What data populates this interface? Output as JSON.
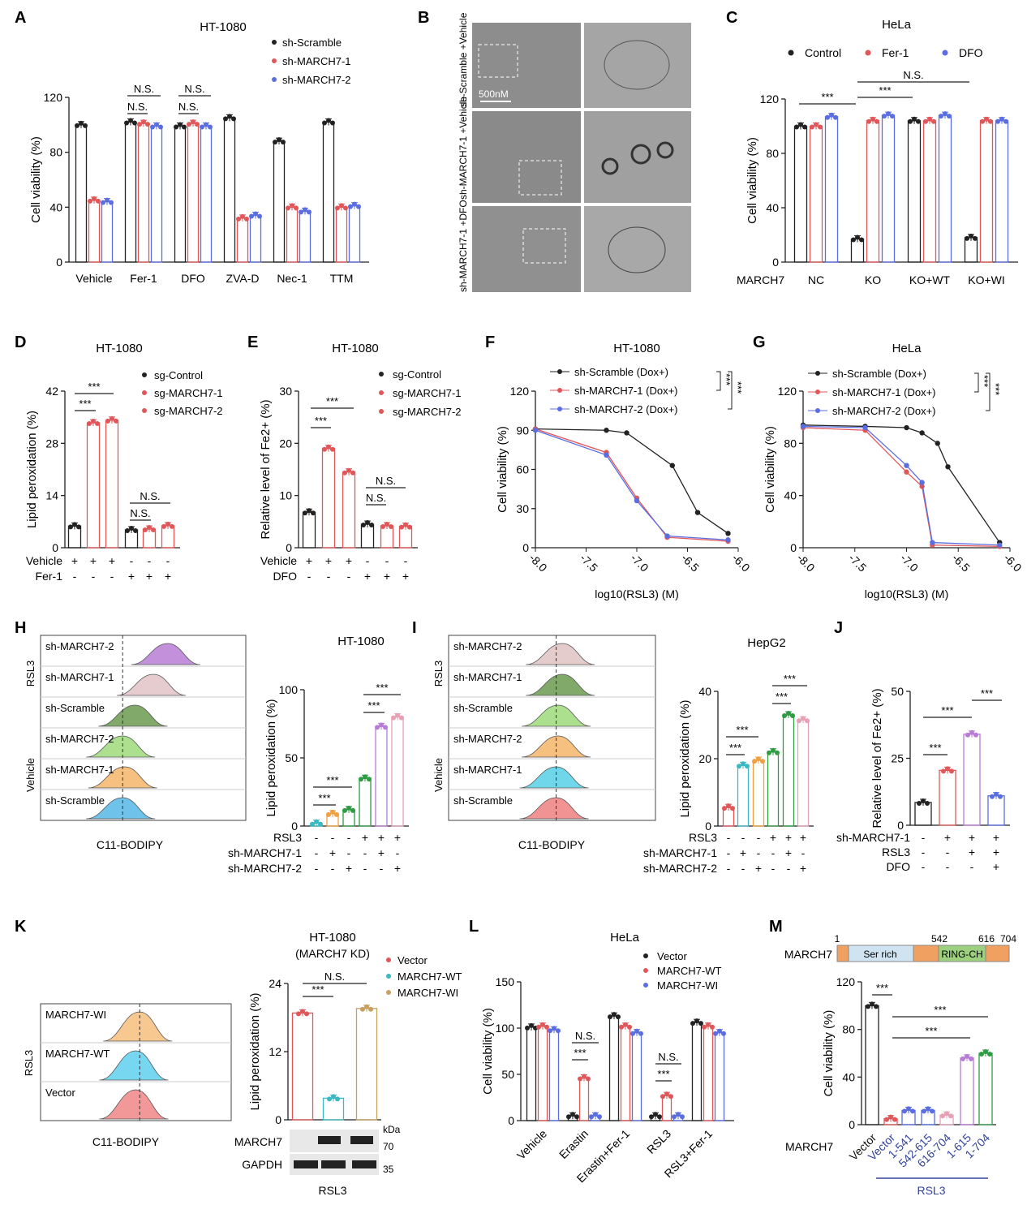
{
  "panel_letters": [
    "A",
    "B",
    "C",
    "D",
    "E",
    "F",
    "G",
    "H",
    "I",
    "J",
    "K",
    "L",
    "M"
  ],
  "colors": {
    "black": "#222222",
    "red": "#e15759",
    "blue": "#5b6ee1",
    "purple": "#b87cd6",
    "pink": "#e8a0b4",
    "green": "#2e9c42",
    "teal": "#3bb9c2",
    "tan": "#c8a060"
  },
  "chart_data": [
    {
      "id": "A",
      "type": "bar",
      "title": "HT-1080",
      "ylabel": "Cell viability (%)",
      "ylim": [
        0,
        120
      ],
      "yticks": [
        0,
        40,
        80,
        120
      ],
      "categories": [
        "Vehicle",
        "Fer-1",
        "DFO",
        "ZVA-D",
        "Nec-1",
        "TTM"
      ],
      "series": [
        {
          "name": "sh-Scramble",
          "values": [
            100,
            102,
            99,
            105,
            88,
            102
          ]
        },
        {
          "name": "sh-MARCH7-1",
          "values": [
            45,
            101,
            101,
            32,
            40,
            40
          ]
        },
        {
          "name": "sh-MARCH7-2",
          "values": [
            44,
            99,
            99,
            34,
            37,
            41
          ]
        }
      ],
      "annotations": [
        "N.S.",
        "N.S.",
        "N.S.",
        "N.S."
      ]
    },
    {
      "id": "B",
      "type": "image",
      "row_labels": [
        "sh-Scramble +Vehicle",
        "sh-MARCH7-1 +Vehicle",
        "sh-MARCH7-1 +DFO"
      ],
      "scale_bar": "500nM"
    },
    {
      "id": "C",
      "type": "bar",
      "title": "HeLa",
      "ylabel": "Cell viability (%)",
      "ylim": [
        0,
        120
      ],
      "yticks": [
        0,
        40,
        80,
        120
      ],
      "row_label": "MARCH7",
      "categories": [
        "NC",
        "KO",
        "KO+WT",
        "KO+WI"
      ],
      "series": [
        {
          "name": "Control",
          "values": [
            100,
            17,
            104,
            18
          ]
        },
        {
          "name": "Fer-1",
          "values": [
            100,
            104,
            104,
            104
          ]
        },
        {
          "name": "DFO",
          "values": [
            107,
            108,
            108,
            104
          ]
        }
      ],
      "annotations": [
        "***",
        "***",
        "N.S."
      ]
    },
    {
      "id": "D",
      "type": "bar",
      "title": "HT-1080",
      "ylabel": "Lipid peroxidation (%)",
      "ylim": [
        0,
        42
      ],
      "yticks": [
        0,
        14,
        28,
        42
      ],
      "categories": [
        "1",
        "2",
        "3",
        "4",
        "5",
        "6"
      ],
      "values": [
        5.8,
        33.5,
        34.2,
        4.8,
        5.0,
        5.9
      ],
      "row_labels": [
        {
          "label": "Vehicle",
          "signs": [
            "+",
            "+",
            "+",
            "-",
            "-",
            "-"
          ]
        },
        {
          "label": "Fer-1",
          "signs": [
            "-",
            "-",
            "-",
            "+",
            "+",
            "+"
          ]
        }
      ],
      "legend": [
        "sg-Control",
        "sg-MARCH7-1",
        "sg-MARCH7-2"
      ],
      "annotations": [
        "***",
        "***",
        "N.S.",
        "N.S."
      ]
    },
    {
      "id": "E",
      "type": "bar",
      "title": "HT-1080",
      "ylabel": "Relative level of Fe2+ (%)",
      "ylim": [
        0,
        30
      ],
      "yticks": [
        0,
        10,
        20,
        30
      ],
      "categories": [
        "1",
        "2",
        "3",
        "4",
        "5",
        "6"
      ],
      "values": [
        6.8,
        19.0,
        14.5,
        4.5,
        4.2,
        4.1
      ],
      "row_labels": [
        {
          "label": "Vehicle",
          "signs": [
            "+",
            "+",
            "+",
            "-",
            "-",
            "-"
          ]
        },
        {
          "label": "DFO",
          "signs": [
            "-",
            "-",
            "-",
            "+",
            "+",
            "+"
          ]
        }
      ],
      "legend": [
        "sg-Control",
        "sg-MARCH7-1",
        "sg-MARCH7-2"
      ],
      "annotations": [
        "***",
        "***",
        "N.S.",
        "N.S."
      ]
    },
    {
      "id": "F",
      "type": "line",
      "title": "HT-1080",
      "ylabel": "Cell viability (%)",
      "xlabel": "log10(RSL3)  (M)",
      "xlim": [
        -8.0,
        -6.0
      ],
      "ylim": [
        0,
        120
      ],
      "xticks": [
        "-8.0",
        "-7.5",
        "-7.0",
        "-6.5",
        "-6.0"
      ],
      "yticks": [
        0,
        30,
        60,
        90,
        120
      ],
      "series": [
        {
          "name": "sh-Scramble (Dox+)",
          "x": [
            -8.0,
            -7.3,
            -7.1,
            -6.65,
            -6.4,
            -6.1
          ],
          "y": [
            91,
            90,
            88,
            63,
            27,
            11
          ]
        },
        {
          "name": "sh-MARCH7-1 (Dox+)",
          "x": [
            -8.0,
            -7.3,
            -7.0,
            -6.7,
            -6.1
          ],
          "y": [
            91,
            73,
            38,
            8,
            5
          ]
        },
        {
          "name": "sh-MARCH7-2 (Dox+)",
          "x": [
            -8.0,
            -7.3,
            -7.0,
            -6.7,
            -6.1
          ],
          "y": [
            90,
            71,
            36,
            9,
            6
          ]
        }
      ],
      "annotations": [
        "***",
        "***"
      ]
    },
    {
      "id": "G",
      "type": "line",
      "title": "HeLa",
      "ylabel": "Cell viability (%)",
      "xlabel": "log10(RSL3)  (M)",
      "xlim": [
        -8.0,
        -6.0
      ],
      "ylim": [
        0,
        120
      ],
      "xticks": [
        "-8.0",
        "-7.5",
        "-7.0",
        "-6.5",
        "-6.0"
      ],
      "yticks": [
        0,
        40,
        80,
        120
      ],
      "series": [
        {
          "name": "sh-Scramble (Dox+)",
          "x": [
            -8.0,
            -7.4,
            -7.0,
            -6.85,
            -6.7,
            -6.6,
            -6.1
          ],
          "y": [
            94,
            93,
            92,
            88,
            80,
            62,
            4
          ]
        },
        {
          "name": "sh-MARCH7-1 (Dox+)",
          "x": [
            -8.0,
            -7.4,
            -7.0,
            -6.85,
            -6.75,
            -6.1
          ],
          "y": [
            92,
            90,
            58,
            47,
            2,
            1
          ]
        },
        {
          "name": "sh-MARCH7-2 (Dox+)",
          "x": [
            -8.0,
            -7.4,
            -7.0,
            -6.85,
            -6.75,
            -6.1
          ],
          "y": [
            93,
            92,
            63,
            50,
            4,
            2
          ]
        }
      ],
      "annotations": [
        "***",
        "***"
      ]
    },
    {
      "id": "H",
      "type": "bar",
      "title": "HT-1080",
      "ylabel": "Lipid peroxidation (%)",
      "ylim": [
        0,
        100
      ],
      "yticks": [
        0,
        50,
        100
      ],
      "categories": [
        "1",
        "2",
        "3",
        "4",
        "5",
        "6"
      ],
      "values": [
        2,
        9,
        12,
        35,
        73,
        80
      ],
      "row_labels": [
        {
          "label": "RSL3",
          "signs": [
            "-",
            "-",
            "-",
            "+",
            "+",
            "+"
          ]
        },
        {
          "label": "sh-MARCH7-1",
          "signs": [
            "-",
            "+",
            "-",
            "-",
            "+",
            "-"
          ]
        },
        {
          "label": "sh-MARCH7-2",
          "signs": [
            "-",
            "-",
            "+",
            "-",
            "-",
            "+"
          ]
        }
      ],
      "annotations": [
        "***",
        "***",
        "***",
        "***"
      ],
      "histogram_labels": [
        "sh-MARCH7-2",
        "sh-MARCH7-1",
        "sh-Scramble",
        "sh-MARCH7-2",
        "sh-MARCH7-1",
        "sh-Scramble"
      ],
      "group_labels": [
        "RSL3",
        "Vehicle"
      ],
      "xlabel": "C11-BODIPY"
    },
    {
      "id": "I",
      "type": "bar",
      "title": "HepG2",
      "ylabel": "Lipid peroxidation (%)",
      "ylim": [
        0,
        40
      ],
      "yticks": [
        0,
        20,
        40
      ],
      "categories": [
        "1",
        "2",
        "3",
        "4",
        "5",
        "6"
      ],
      "values": [
        5.5,
        18,
        19.5,
        22,
        33,
        31.5
      ],
      "row_labels": [
        {
          "label": "RSL3",
          "signs": [
            "-",
            "-",
            "-",
            "+",
            "+",
            "+"
          ]
        },
        {
          "label": "sh-MARCH7-1",
          "signs": [
            "-",
            "+",
            "-",
            "-",
            "+",
            "-"
          ]
        },
        {
          "label": "sh-MARCH7-2",
          "signs": [
            "-",
            "-",
            "+",
            "-",
            "-",
            "+"
          ]
        }
      ],
      "annotations": [
        "***",
        "***",
        "***",
        "***"
      ],
      "histogram_labels": [
        "sh-MARCH7-2",
        "sh-MARCH7-1",
        "sh-Scramble",
        "sh-MARCH7-2",
        "sh-MARCH7-1",
        "sh-Scramble"
      ],
      "group_labels": [
        "RSL3",
        "Vehicle"
      ],
      "xlabel": "C11-BODIPY"
    },
    {
      "id": "J",
      "type": "bar",
      "ylabel": "Relative level of Fe2+ (%)",
      "ylim": [
        0,
        50
      ],
      "yticks": [
        0,
        25,
        50
      ],
      "categories": [
        "1",
        "2",
        "3",
        "4"
      ],
      "values": [
        8.5,
        20.5,
        34,
        11
      ],
      "row_labels": [
        {
          "label": "sh-MARCH7-1",
          "signs": [
            "-",
            "+",
            "+",
            "+"
          ]
        },
        {
          "label": "RSL3",
          "signs": [
            "-",
            "-",
            "+",
            "+"
          ]
        },
        {
          "label": "DFO",
          "signs": [
            "-",
            "-",
            "-",
            "+"
          ]
        }
      ],
      "annotations": [
        "***",
        "***",
        "***"
      ]
    },
    {
      "id": "K",
      "type": "bar",
      "title": "HT-1080",
      "subtitle": "(MARCH7 KD)",
      "ylabel": "Lipid peroxidation (%)",
      "ylim": [
        0,
        24
      ],
      "yticks": [
        0,
        12,
        24
      ],
      "categories": [
        "Vector",
        "MARCH7-WT",
        "MARCH7-WI"
      ],
      "values": [
        18.8,
        3.8,
        19.6
      ],
      "legend": [
        "Vector",
        "MARCH7-WT",
        "MARCH7-WI"
      ],
      "annotations": [
        "***",
        "N.S."
      ],
      "histogram_labels": [
        "MARCH7-WI",
        "MARCH7-WT",
        "Vector"
      ],
      "group_label": "RSL3",
      "xlabel": "C11-BODIPY",
      "blot": {
        "rows": [
          "MARCH7",
          "GAPDH"
        ],
        "markers": [
          "kDa",
          "70",
          "35"
        ],
        "caption": "RSL3"
      }
    },
    {
      "id": "L",
      "type": "bar",
      "title": "HeLa",
      "ylabel": "Cell viability (%)",
      "ylim": [
        0,
        150
      ],
      "yticks": [
        0,
        50,
        100,
        150
      ],
      "categories": [
        "Vehicle",
        "Erastin",
        "Erastin+Fer-1",
        "RSL3",
        "RSL3+Fer-1"
      ],
      "series": [
        {
          "name": "Vector",
          "values": [
            101,
            5,
            113,
            5,
            106
          ]
        },
        {
          "name": "MARCH7-WT",
          "values": [
            102,
            46,
            102,
            27,
            102
          ]
        },
        {
          "name": "MARCH7-WI",
          "values": [
            98,
            5,
            95,
            5,
            95
          ]
        }
      ],
      "annotations": [
        "N.S.",
        "***",
        "N.S.",
        "***"
      ]
    },
    {
      "id": "M",
      "type": "bar",
      "ylabel": "Cell viability (%)",
      "ylim": [
        0,
        120
      ],
      "yticks": [
        0,
        40,
        80,
        120
      ],
      "row_label": "MARCH7",
      "categories": [
        "Vector",
        "Vector",
        "1-541",
        "542-615",
        "616-704",
        "1-615",
        "1-704"
      ],
      "values": [
        100,
        5,
        12,
        12,
        8,
        56,
        60
      ],
      "group_label": "RSL3",
      "annotations": [
        "***",
        "***",
        "***"
      ],
      "domain_map": {
        "label": "MARCH7",
        "positions": [
          "1",
          "542",
          "616",
          "704"
        ],
        "domains": [
          "Ser rich",
          "RING-CH"
        ]
      }
    }
  ]
}
